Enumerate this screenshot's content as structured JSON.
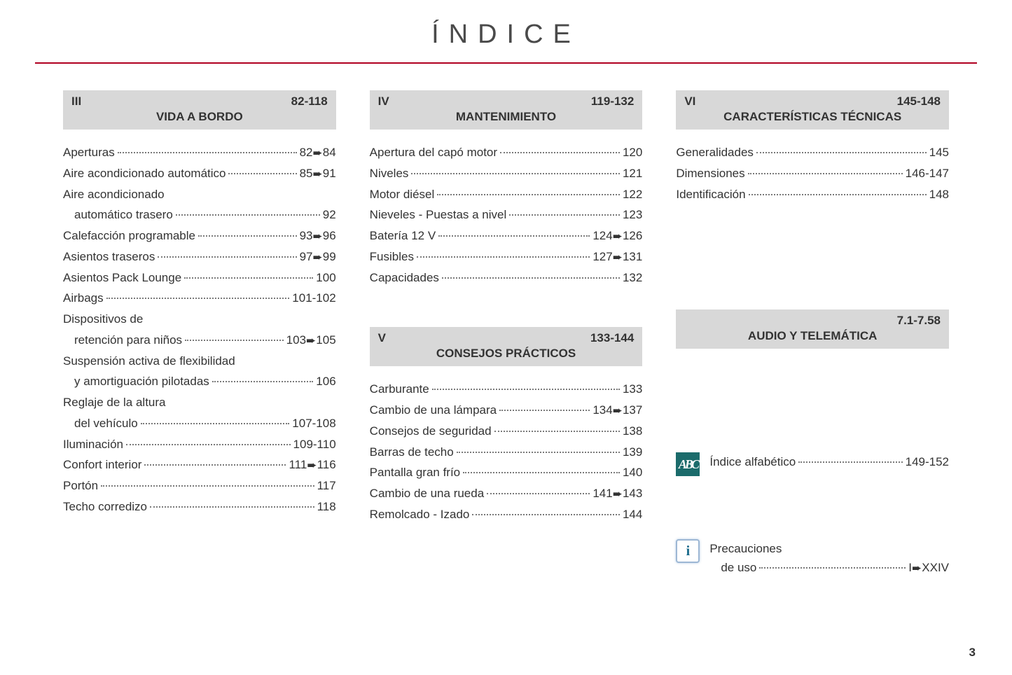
{
  "title": "ÍNDICE",
  "page_number": "3",
  "columns": [
    {
      "sections": [
        {
          "numeral": "III",
          "range": "82-118",
          "title": "VIDA A BORDO",
          "entries": [
            {
              "label": "Aperturas",
              "pages": "82➨84"
            },
            {
              "label": "Aire acondicionado automático",
              "pages": "85➨91"
            },
            {
              "label": "Aire acondicionado",
              "cont": "automático trasero",
              "pages": "92"
            },
            {
              "label": "Calefacción programable",
              "pages": "93➨96"
            },
            {
              "label": "Asientos traseros",
              "pages": "97➨99"
            },
            {
              "label": "Asientos Pack Lounge",
              "pages": "100"
            },
            {
              "label": "Airbags",
              "pages": "101-102"
            },
            {
              "label": "Dispositivos de",
              "cont": "retención para niños",
              "pages": "103➨105"
            },
            {
              "label": "Suspensión activa de flexibilidad",
              "cont": "y amortiguación pilotadas",
              "pages": "106"
            },
            {
              "label": "Reglaje de la altura",
              "cont": "del vehículo",
              "pages": "107-108"
            },
            {
              "label": "Iluminación",
              "pages": "109-110"
            },
            {
              "label": "Confort interior",
              "pages": "111➨116"
            },
            {
              "label": "Portón",
              "pages": "117"
            },
            {
              "label": "Techo corredizo",
              "pages": "118"
            }
          ]
        }
      ]
    },
    {
      "sections": [
        {
          "numeral": "IV",
          "range": "119-132",
          "title": "MANTENIMIENTO",
          "entries": [
            {
              "label": "Apertura del capó motor",
              "pages": "120"
            },
            {
              "label": "Niveles",
              "pages": "121"
            },
            {
              "label": "Motor diésel",
              "pages": "122"
            },
            {
              "label": "Nieveles - Puestas a nivel",
              "pages": "123"
            },
            {
              "label": "Batería 12 V",
              "pages": "124➨126"
            },
            {
              "label": "Fusibles",
              "pages": "127➨131"
            },
            {
              "label": "Capacidades",
              "pages": "132"
            }
          ]
        },
        {
          "numeral": "V",
          "range": "133-144",
          "title": "CONSEJOS PRÁCTICOS",
          "gap_before": true,
          "entries": [
            {
              "label": "Carburante",
              "pages": "133"
            },
            {
              "label": "Cambio de una lámpara",
              "pages": "134➨137"
            },
            {
              "label": "Consejos de seguridad",
              "pages": "138"
            },
            {
              "label": "Barras de techo",
              "pages": "139"
            },
            {
              "label": "Pantalla gran frío",
              "pages": "140"
            },
            {
              "label": "Cambio de una rueda",
              "pages": "141➨143"
            },
            {
              "label": "Remolcado - Izado",
              "pages": "144"
            }
          ]
        }
      ]
    },
    {
      "sections": [
        {
          "numeral": "VI",
          "range": "145-148",
          "title": "CARACTERÍSTICAS TÉCNICAS",
          "entries": [
            {
              "label": "Generalidades",
              "pages": "145"
            },
            {
              "label": "Dimensiones",
              "pages": "146-147"
            },
            {
              "label": "Identificación",
              "pages": "148"
            }
          ]
        },
        {
          "numeral": "",
          "range": "7.1-7.58",
          "title": "AUDIO Y TELEMÁTICA",
          "gap_before": true,
          "big_gap": true,
          "entries": []
        }
      ],
      "extras": [
        {
          "icon": "abc",
          "label": "Índice alfabético",
          "pages": "149-152"
        },
        {
          "icon": "info",
          "label": "Precauciones",
          "cont": "de uso",
          "pages": "I➨XXIV"
        }
      ]
    }
  ]
}
